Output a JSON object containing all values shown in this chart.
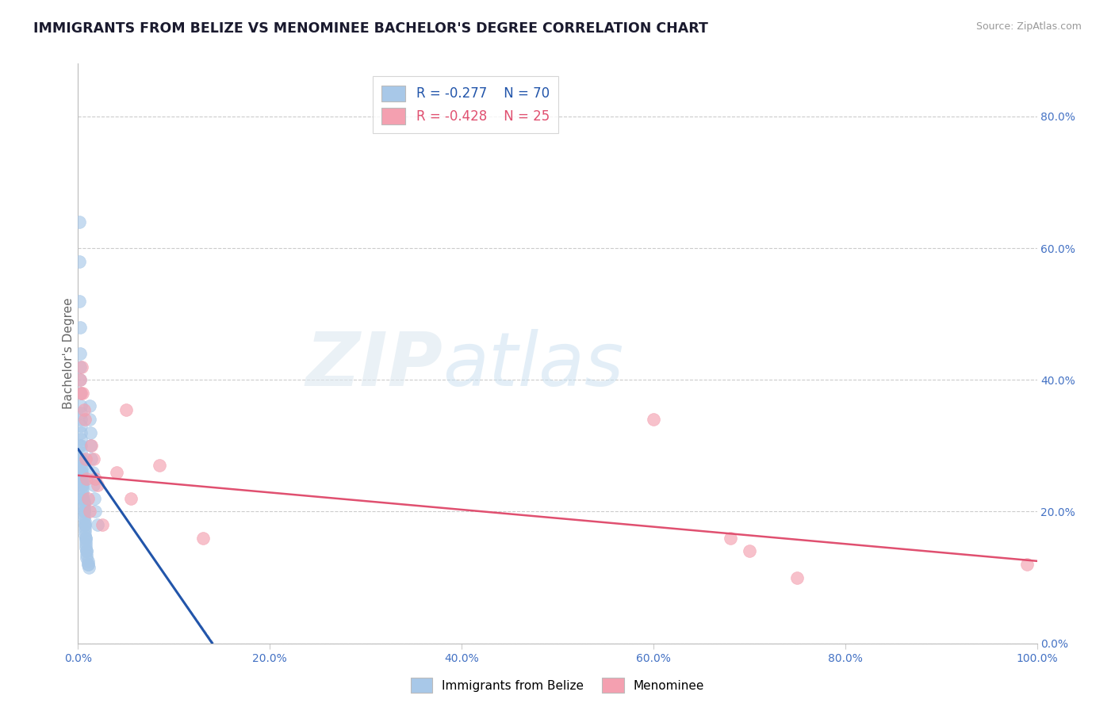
{
  "title": "IMMIGRANTS FROM BELIZE VS MENOMINEE BACHELOR'S DEGREE CORRELATION CHART",
  "source": "Source: ZipAtlas.com",
  "ylabel": "Bachelor's Degree",
  "background_color": "#ffffff",
  "xmin": 0.0,
  "xmax": 1.0,
  "ymin": 0.0,
  "ymax": 0.88,
  "blue_scatter_x": [
    0.001,
    0.001,
    0.001,
    0.002,
    0.002,
    0.002,
    0.002,
    0.002,
    0.003,
    0.003,
    0.003,
    0.003,
    0.003,
    0.003,
    0.003,
    0.003,
    0.004,
    0.004,
    0.004,
    0.004,
    0.004,
    0.004,
    0.005,
    0.005,
    0.005,
    0.005,
    0.005,
    0.005,
    0.005,
    0.006,
    0.006,
    0.006,
    0.006,
    0.006,
    0.006,
    0.007,
    0.007,
    0.007,
    0.007,
    0.007,
    0.008,
    0.008,
    0.008,
    0.008,
    0.009,
    0.009,
    0.009,
    0.01,
    0.01,
    0.011,
    0.012,
    0.012,
    0.013,
    0.013,
    0.014,
    0.015,
    0.016,
    0.017,
    0.018,
    0.02,
    0.001,
    0.002,
    0.003,
    0.004,
    0.005,
    0.006,
    0.007,
    0.008,
    0.009,
    0.01
  ],
  "blue_scatter_y": [
    0.64,
    0.58,
    0.52,
    0.48,
    0.44,
    0.42,
    0.4,
    0.38,
    0.36,
    0.35,
    0.34,
    0.33,
    0.32,
    0.31,
    0.3,
    0.29,
    0.28,
    0.275,
    0.27,
    0.265,
    0.26,
    0.255,
    0.25,
    0.245,
    0.24,
    0.235,
    0.23,
    0.225,
    0.22,
    0.215,
    0.21,
    0.205,
    0.2,
    0.195,
    0.19,
    0.185,
    0.18,
    0.175,
    0.17,
    0.165,
    0.16,
    0.155,
    0.15,
    0.145,
    0.14,
    0.135,
    0.13,
    0.125,
    0.12,
    0.115,
    0.36,
    0.34,
    0.32,
    0.3,
    0.28,
    0.26,
    0.24,
    0.22,
    0.2,
    0.18,
    0.3,
    0.28,
    0.26,
    0.24,
    0.22,
    0.2,
    0.18,
    0.16,
    0.14,
    0.12
  ],
  "pink_scatter_x": [
    0.002,
    0.003,
    0.004,
    0.005,
    0.006,
    0.007,
    0.008,
    0.009,
    0.01,
    0.012,
    0.014,
    0.016,
    0.018,
    0.02,
    0.025,
    0.04,
    0.05,
    0.055,
    0.085,
    0.13,
    0.6,
    0.68,
    0.7,
    0.75,
    0.99
  ],
  "pink_scatter_y": [
    0.4,
    0.38,
    0.42,
    0.38,
    0.355,
    0.34,
    0.28,
    0.25,
    0.22,
    0.2,
    0.3,
    0.28,
    0.25,
    0.24,
    0.18,
    0.26,
    0.355,
    0.22,
    0.27,
    0.16,
    0.34,
    0.16,
    0.14,
    0.1,
    0.12
  ],
  "blue_color": "#a8c8e8",
  "pink_color": "#f4a0b0",
  "blue_line_color": "#2255aa",
  "pink_line_color": "#e05070",
  "blue_trend_x": [
    0.0,
    0.14
  ],
  "blue_trend_y": [
    0.295,
    0.0
  ],
  "pink_trend_x": [
    0.0,
    1.0
  ],
  "pink_trend_y": [
    0.255,
    0.125
  ],
  "blue_R": -0.277,
  "blue_N": 70,
  "pink_R": -0.428,
  "pink_N": 25,
  "watermark_zip": "ZIP",
  "watermark_atlas": "atlas",
  "legend_label_blue": "Immigrants from Belize",
  "legend_label_pink": "Menominee",
  "x_ticks": [
    0.0,
    0.2,
    0.4,
    0.6,
    0.8,
    1.0
  ],
  "x_ticklabels": [
    "0.0%",
    "20.0%",
    "40.0%",
    "60.0%",
    "80.0%",
    "100.0%"
  ],
  "y_ticks": [
    0.0,
    0.2,
    0.4,
    0.6,
    0.8
  ],
  "y_ticklabels": [
    "0.0%",
    "20.0%",
    "40.0%",
    "60.0%",
    "80.0%"
  ]
}
